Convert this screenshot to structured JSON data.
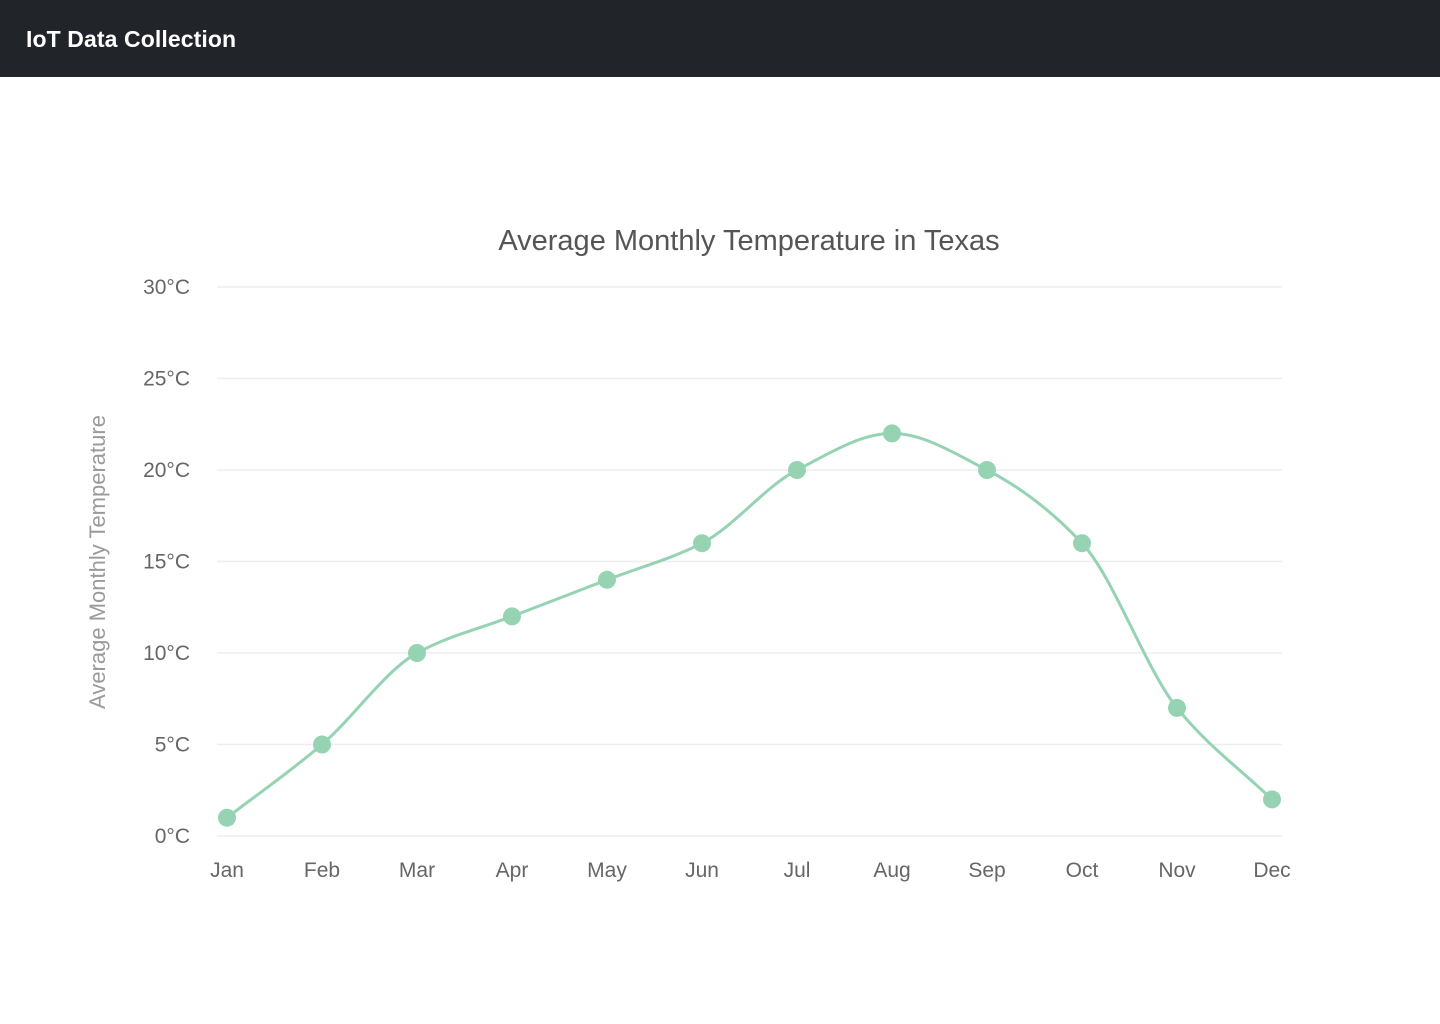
{
  "header": {
    "title": "IoT Data Collection",
    "background": "#212429"
  },
  "chart_data": {
    "type": "line",
    "title": "Average Monthly Temperature in Texas",
    "xlabel": "",
    "ylabel": "Average Monthly Temperature",
    "categories": [
      "Jan",
      "Feb",
      "Mar",
      "Apr",
      "May",
      "Jun",
      "Jul",
      "Aug",
      "Sep",
      "Oct",
      "Nov",
      "Dec"
    ],
    "series": [
      {
        "values": [
          1,
          5,
          10,
          12,
          14,
          16,
          20,
          22,
          20,
          16,
          7,
          2
        ],
        "color": "#96d3b2"
      }
    ],
    "ylim": [
      0,
      30
    ],
    "yticks": [
      0,
      5,
      10,
      15,
      20,
      25,
      30
    ],
    "ytick_labels": [
      "0°C",
      "5°C",
      "10°C",
      "15°C",
      "20°C",
      "25°C",
      "30°C"
    ],
    "grid": true,
    "gridColor": "#eeeeee",
    "legend": "none"
  }
}
